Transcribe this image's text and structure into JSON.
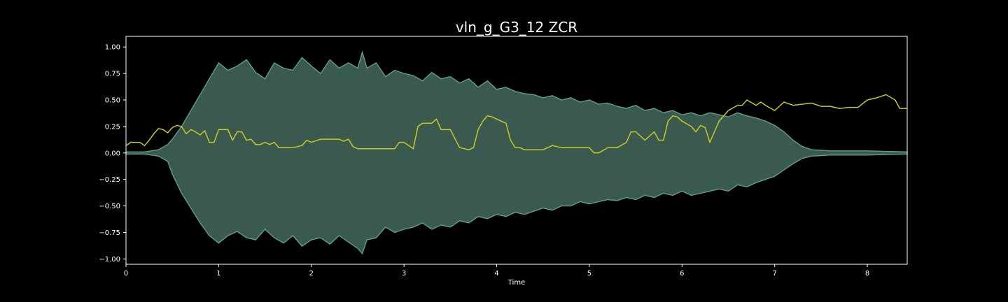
{
  "chart_data": {
    "type": "line",
    "title": "vln_g_G3_12 ZCR",
    "xlabel": "Time",
    "ylabel": "",
    "xlim": [
      0,
      8.43
    ],
    "ylim": [
      -1.05,
      1.1
    ],
    "x_ticks": [
      0,
      1,
      2,
      3,
      4,
      5,
      6,
      7,
      8
    ],
    "y_ticks": [
      -1.0,
      -0.75,
      -0.5,
      -0.25,
      0.0,
      0.25,
      0.5,
      0.75,
      1.0
    ],
    "y_tick_labels": [
      "−1.00",
      "−0.75",
      "−0.50",
      "−0.25",
      "0.00",
      "0.25",
      "0.50",
      "0.75",
      "1.00"
    ],
    "grid": false,
    "legend": "none",
    "colors": {
      "background": "#000000",
      "axes": "#ffffff",
      "waveform_fill": "#3a5a50",
      "waveform_edge": "#5f9e8c",
      "zcr_line": "#c8c81e"
    },
    "series": [
      {
        "kind": "waveform-envelope",
        "x": [
          0,
          0.2,
          0.35,
          0.45,
          0.5,
          0.6,
          0.7,
          0.8,
          0.9,
          1.0,
          1.1,
          1.2,
          1.3,
          1.4,
          1.5,
          1.6,
          1.7,
          1.8,
          1.9,
          2.0,
          2.1,
          2.2,
          2.3,
          2.4,
          2.5,
          2.55,
          2.6,
          2.7,
          2.8,
          2.9,
          3.0,
          3.1,
          3.2,
          3.3,
          3.4,
          3.5,
          3.6,
          3.7,
          3.8,
          3.9,
          4.0,
          4.1,
          4.2,
          4.3,
          4.4,
          4.5,
          4.6,
          4.7,
          4.8,
          4.9,
          5.0,
          5.1,
          5.2,
          5.3,
          5.4,
          5.5,
          5.6,
          5.7,
          5.8,
          5.9,
          6.0,
          6.1,
          6.2,
          6.3,
          6.4,
          6.5,
          6.6,
          6.7,
          6.8,
          6.9,
          7.0,
          7.1,
          7.2,
          7.3,
          7.4,
          7.6,
          8.0,
          8.43
        ],
        "upper": [
          0.01,
          0.01,
          0.03,
          0.08,
          0.13,
          0.25,
          0.4,
          0.55,
          0.7,
          0.85,
          0.78,
          0.82,
          0.88,
          0.76,
          0.7,
          0.85,
          0.8,
          0.78,
          0.9,
          0.82,
          0.75,
          0.88,
          0.8,
          0.85,
          0.8,
          0.95,
          0.8,
          0.85,
          0.72,
          0.78,
          0.75,
          0.73,
          0.68,
          0.76,
          0.7,
          0.72,
          0.66,
          0.7,
          0.62,
          0.68,
          0.6,
          0.62,
          0.58,
          0.56,
          0.55,
          0.52,
          0.54,
          0.5,
          0.52,
          0.48,
          0.5,
          0.46,
          0.47,
          0.44,
          0.42,
          0.45,
          0.4,
          0.42,
          0.38,
          0.4,
          0.36,
          0.38,
          0.35,
          0.38,
          0.36,
          0.34,
          0.38,
          0.35,
          0.33,
          0.3,
          0.26,
          0.2,
          0.12,
          0.06,
          0.03,
          0.02,
          0.02,
          0.01
        ],
        "lower": [
          -0.01,
          -0.01,
          -0.03,
          -0.08,
          -0.2,
          -0.38,
          -0.52,
          -0.66,
          -0.78,
          -0.85,
          -0.78,
          -0.74,
          -0.8,
          -0.82,
          -0.72,
          -0.8,
          -0.85,
          -0.78,
          -0.88,
          -0.82,
          -0.8,
          -0.86,
          -0.78,
          -0.84,
          -0.9,
          -0.95,
          -0.82,
          -0.8,
          -0.7,
          -0.75,
          -0.72,
          -0.7,
          -0.66,
          -0.72,
          -0.68,
          -0.7,
          -0.64,
          -0.66,
          -0.6,
          -0.62,
          -0.58,
          -0.6,
          -0.56,
          -0.58,
          -0.55,
          -0.52,
          -0.54,
          -0.5,
          -0.5,
          -0.46,
          -0.48,
          -0.46,
          -0.44,
          -0.45,
          -0.42,
          -0.44,
          -0.4,
          -0.42,
          -0.38,
          -0.4,
          -0.36,
          -0.4,
          -0.38,
          -0.36,
          -0.34,
          -0.36,
          -0.3,
          -0.32,
          -0.28,
          -0.25,
          -0.22,
          -0.16,
          -0.1,
          -0.05,
          -0.03,
          -0.02,
          -0.02,
          -0.01
        ]
      },
      {
        "kind": "zcr-line",
        "x": [
          0,
          0.05,
          0.15,
          0.2,
          0.25,
          0.3,
          0.35,
          0.4,
          0.45,
          0.5,
          0.55,
          0.6,
          0.65,
          0.7,
          0.75,
          0.8,
          0.85,
          0.9,
          0.95,
          1.0,
          1.05,
          1.1,
          1.15,
          1.2,
          1.25,
          1.3,
          1.35,
          1.4,
          1.45,
          1.5,
          1.55,
          1.6,
          1.65,
          1.7,
          1.8,
          1.9,
          1.95,
          2.0,
          2.1,
          2.2,
          2.3,
          2.35,
          2.4,
          2.45,
          2.5,
          2.6,
          2.7,
          2.8,
          2.9,
          2.95,
          3.0,
          3.1,
          3.15,
          3.2,
          3.3,
          3.35,
          3.4,
          3.45,
          3.5,
          3.6,
          3.7,
          3.75,
          3.8,
          3.85,
          3.9,
          3.95,
          4.0,
          4.05,
          4.1,
          4.15,
          4.2,
          4.25,
          4.3,
          4.4,
          4.5,
          4.6,
          4.7,
          4.8,
          4.9,
          5.0,
          5.05,
          5.1,
          5.2,
          5.3,
          5.4,
          5.45,
          5.5,
          5.6,
          5.7,
          5.75,
          5.8,
          5.85,
          5.9,
          5.95,
          6.0,
          6.1,
          6.15,
          6.2,
          6.25,
          6.3,
          6.4,
          6.5,
          6.6,
          6.65,
          6.7,
          6.8,
          6.85,
          6.9,
          7.0,
          7.1,
          7.2,
          7.3,
          7.4,
          7.5,
          7.6,
          7.7,
          7.8,
          7.9,
          8.0,
          8.1,
          8.2,
          8.3,
          8.35,
          8.43
        ],
        "y": [
          0.07,
          0.1,
          0.1,
          0.07,
          0.12,
          0.18,
          0.23,
          0.22,
          0.19,
          0.24,
          0.26,
          0.25,
          0.18,
          0.22,
          0.2,
          0.17,
          0.21,
          0.1,
          0.1,
          0.22,
          0.22,
          0.22,
          0.12,
          0.2,
          0.2,
          0.12,
          0.13,
          0.08,
          0.08,
          0.1,
          0.08,
          0.1,
          0.05,
          0.05,
          0.05,
          0.07,
          0.12,
          0.1,
          0.13,
          0.13,
          0.13,
          0.11,
          0.13,
          0.06,
          0.04,
          0.04,
          0.04,
          0.04,
          0.04,
          0.1,
          0.1,
          0.04,
          0.25,
          0.28,
          0.28,
          0.32,
          0.22,
          0.22,
          0.22,
          0.05,
          0.03,
          0.05,
          0.22,
          0.3,
          0.35,
          0.34,
          0.32,
          0.3,
          0.28,
          0.12,
          0.05,
          0.05,
          0.03,
          0.03,
          0.03,
          0.07,
          0.05,
          0.05,
          0.05,
          0.05,
          0.0,
          0.0,
          0.05,
          0.05,
          0.1,
          0.2,
          0.2,
          0.12,
          0.2,
          0.12,
          0.12,
          0.3,
          0.35,
          0.34,
          0.3,
          0.25,
          0.2,
          0.26,
          0.24,
          0.1,
          0.3,
          0.4,
          0.45,
          0.45,
          0.5,
          0.45,
          0.48,
          0.45,
          0.4,
          0.48,
          0.45,
          0.46,
          0.47,
          0.44,
          0.44,
          0.42,
          0.43,
          0.43,
          0.5,
          0.52,
          0.55,
          0.5,
          0.42,
          0.42
        ]
      }
    ]
  }
}
